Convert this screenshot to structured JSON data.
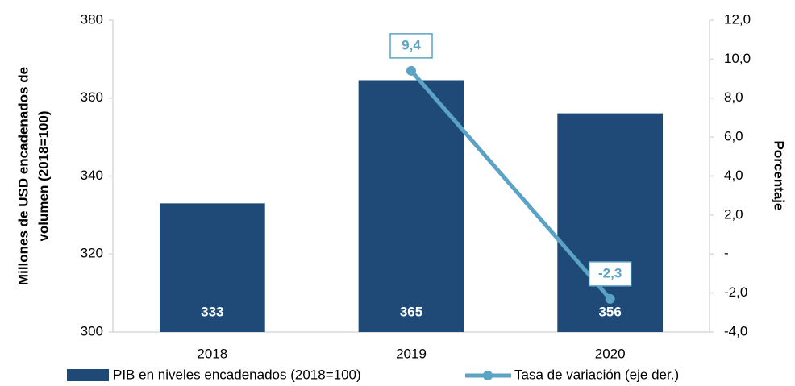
{
  "chart_data": {
    "type": "combo",
    "categories": [
      "2018",
      "2019",
      "2020"
    ],
    "ylabel": [
      "Millones de USD encadenados de",
      "volumen (2018=100)"
    ],
    "y2label": "Porcentaje",
    "ylim": [
      300,
      380
    ],
    "yticks": [
      300,
      320,
      340,
      360,
      380
    ],
    "y2lim": [
      -4,
      12
    ],
    "y2ticks": [
      {
        "value": -4,
        "label": "-4,0"
      },
      {
        "value": -2,
        "label": "-2,0"
      },
      {
        "value": 0,
        "label": "-"
      },
      {
        "value": 2,
        "label": "2,0"
      },
      {
        "value": 4,
        "label": "4,0"
      },
      {
        "value": 6,
        "label": "6,0"
      },
      {
        "value": 8,
        "label": "8,0"
      },
      {
        "value": 10,
        "label": "10,0"
      },
      {
        "value": 12,
        "label": "12,0"
      }
    ],
    "grid": false,
    "series": [
      {
        "name": "PIB en niveles encadenados (2018=100)",
        "type": "bar",
        "color": "#1f4a78",
        "values": [
          333,
          364.6,
          356.1
        ],
        "value_labels": [
          "333",
          "365",
          "356"
        ]
      },
      {
        "name": "Tasa de variación (eje der.)",
        "type": "line",
        "axis": "y2",
        "color": "#5ba3c4",
        "values": [
          null,
          9.4,
          -2.3
        ],
        "value_labels": [
          null,
          "9,4",
          "-2,3"
        ]
      }
    ]
  }
}
